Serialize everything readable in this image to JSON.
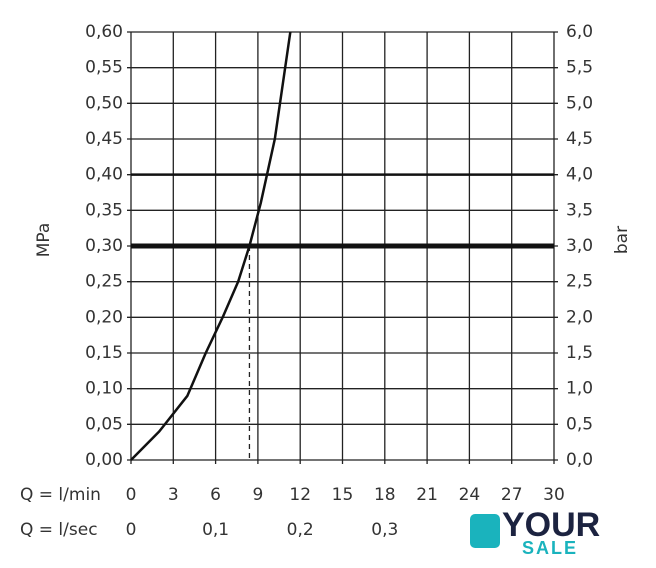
{
  "chart_data": {
    "type": "line",
    "y_label": "MPa",
    "y2_label": "bar",
    "x_row_label": "Q = l/min",
    "x2_row_label": "Q = l/sec",
    "x": [
      0,
      2,
      4,
      5.3,
      6.5,
      7.6,
      8.4,
      9.2,
      10.2,
      11.3
    ],
    "series": [
      {
        "color": "#111111",
        "values": [
          0,
          0.04,
          0.09,
          0.15,
          0.2,
          0.25,
          0.3,
          0.36,
          0.45,
          0.6
        ]
      }
    ],
    "xlim": [
      0,
      30
    ],
    "xticks": [
      0,
      3,
      6,
      9,
      12,
      15,
      18,
      21,
      24,
      27,
      30
    ],
    "x2lim": [
      0,
      0.5
    ],
    "x2ticks": [
      0,
      {
        "value": 0.1,
        "label": "0,1"
      },
      {
        "value": 0.2,
        "label": "0,2"
      },
      {
        "value": 0.3,
        "label": "0,3"
      }
    ],
    "ylim": [
      0,
      0.6
    ],
    "yticks": [
      {
        "value": 0,
        "label": "0,00"
      },
      {
        "value": 0.05,
        "label": "0,05"
      },
      {
        "value": 0.1,
        "label": "0,10"
      },
      {
        "value": 0.15,
        "label": "0,15"
      },
      {
        "value": 0.2,
        "label": "0,20"
      },
      {
        "value": 0.25,
        "label": "0,25"
      },
      {
        "value": 0.3,
        "label": "0,30"
      },
      {
        "value": 0.35,
        "label": "0,35"
      },
      {
        "value": 0.4,
        "label": "0,40"
      },
      {
        "value": 0.45,
        "label": "0,45"
      },
      {
        "value": 0.5,
        "label": "0,50"
      },
      {
        "value": 0.55,
        "label": "0,55"
      },
      {
        "value": 0.6,
        "label": "0,60"
      }
    ],
    "y2lim": [
      0,
      6
    ],
    "y2ticks": [
      {
        "value": 0,
        "label": "0,0"
      },
      {
        "value": 0.5,
        "label": "0,5"
      },
      {
        "value": 1,
        "label": "1,0"
      },
      {
        "value": 1.5,
        "label": "1,5"
      },
      {
        "value": 2,
        "label": "2,0"
      },
      {
        "value": 2.5,
        "label": "2,5"
      },
      {
        "value": 3,
        "label": "3,0"
      },
      {
        "value": 3.5,
        "label": "3,5"
      },
      {
        "value": 4,
        "label": "4,0"
      },
      {
        "value": 4.5,
        "label": "4,5"
      },
      {
        "value": 5,
        "label": "5,0"
      },
      {
        "value": 5.5,
        "label": "5,5"
      },
      {
        "value": 6,
        "label": "6,0"
      }
    ],
    "grid": true,
    "highlight_y": [
      0.3,
      0.4
    ],
    "operating_point": {
      "x": 8.4,
      "y": 0.3
    }
  },
  "watermark": {
    "line1": "YOUR",
    "line2": "SALE"
  }
}
